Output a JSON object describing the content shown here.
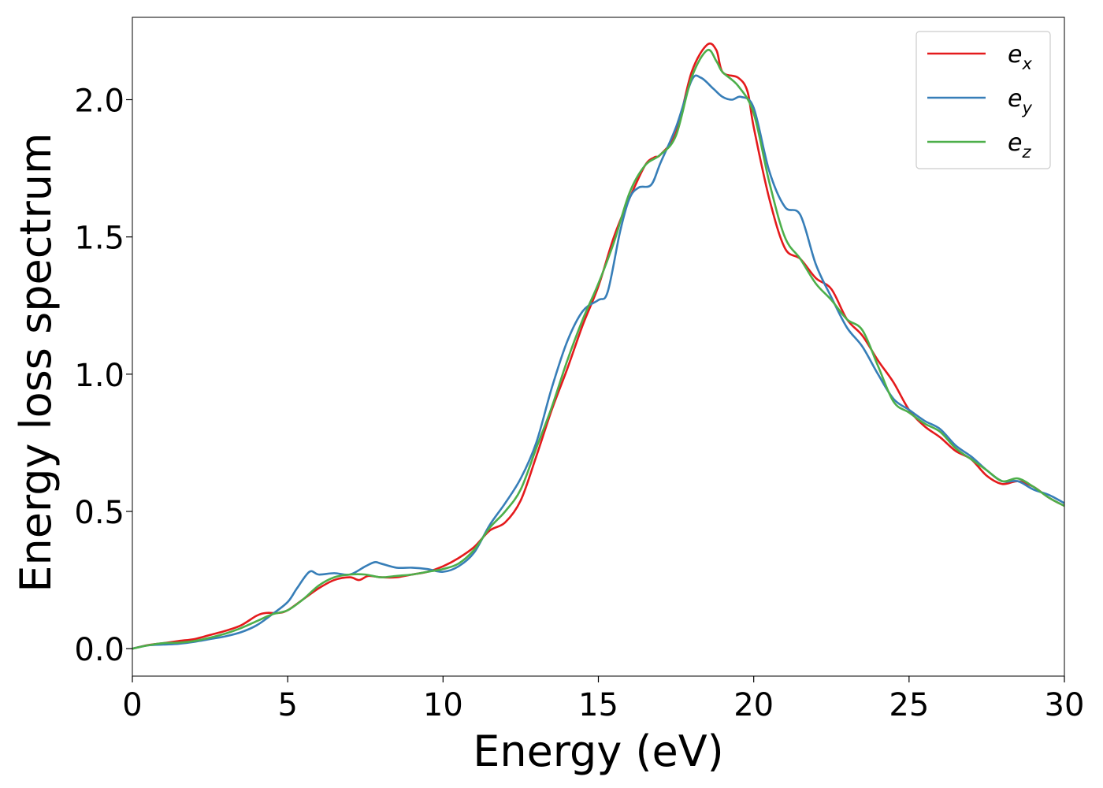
{
  "chart_data": {
    "type": "line",
    "title": "",
    "xlabel": "Energy (eV)",
    "ylabel": "Energy loss spectrum",
    "xlim": [
      0,
      30
    ],
    "ylim": [
      -0.1,
      2.3
    ],
    "xticks": [
      0,
      5,
      10,
      15,
      20,
      25,
      30
    ],
    "xtick_labels": [
      "0",
      "5",
      "10",
      "15",
      "20",
      "25",
      "30"
    ],
    "yticks": [
      0.0,
      0.5,
      1.0,
      1.5,
      2.0
    ],
    "ytick_labels": [
      "0.0",
      "0.5",
      "1.0",
      "1.5",
      "2.0"
    ],
    "grid": false,
    "legend_position": "top-right",
    "series": [
      {
        "name": "e_x",
        "label_main": "e",
        "label_sub": "x",
        "color": "#e41a1c",
        "points": [
          [
            0,
            0
          ],
          [
            0.5,
            0.013
          ],
          [
            1,
            0.02
          ],
          [
            1.5,
            0.028
          ],
          [
            2,
            0.035
          ],
          [
            2.5,
            0.05
          ],
          [
            3,
            0.065
          ],
          [
            3.5,
            0.085
          ],
          [
            4,
            0.12
          ],
          [
            4.3,
            0.13
          ],
          [
            4.7,
            0.13
          ],
          [
            5,
            0.14
          ],
          [
            5.5,
            0.18
          ],
          [
            6,
            0.22
          ],
          [
            6.5,
            0.25
          ],
          [
            7,
            0.26
          ],
          [
            7.3,
            0.25
          ],
          [
            7.6,
            0.265
          ],
          [
            8,
            0.26
          ],
          [
            8.5,
            0.26
          ],
          [
            9,
            0.27
          ],
          [
            9.5,
            0.28
          ],
          [
            10,
            0.3
          ],
          [
            10.5,
            0.33
          ],
          [
            11,
            0.37
          ],
          [
            11.5,
            0.43
          ],
          [
            12,
            0.46
          ],
          [
            12.5,
            0.54
          ],
          [
            13,
            0.7
          ],
          [
            13.5,
            0.87
          ],
          [
            14,
            1.02
          ],
          [
            14.5,
            1.18
          ],
          [
            15,
            1.32
          ],
          [
            15.5,
            1.5
          ],
          [
            16,
            1.64
          ],
          [
            16.5,
            1.76
          ],
          [
            16.8,
            1.79
          ],
          [
            17,
            1.8
          ],
          [
            17.5,
            1.88
          ],
          [
            18,
            2.1
          ],
          [
            18.5,
            2.2
          ],
          [
            18.8,
            2.18
          ],
          [
            19,
            2.1
          ],
          [
            19.5,
            2.08
          ],
          [
            19.8,
            2.03
          ],
          [
            20,
            1.9
          ],
          [
            20.5,
            1.64
          ],
          [
            21,
            1.46
          ],
          [
            21.5,
            1.42
          ],
          [
            22,
            1.35
          ],
          [
            22.5,
            1.31
          ],
          [
            23,
            1.2
          ],
          [
            23.5,
            1.14
          ],
          [
            24,
            1.05
          ],
          [
            24.5,
            0.97
          ],
          [
            25,
            0.87
          ],
          [
            25.5,
            0.81
          ],
          [
            26,
            0.77
          ],
          [
            26.5,
            0.72
          ],
          [
            27,
            0.69
          ],
          [
            27.5,
            0.63
          ],
          [
            28,
            0.6
          ],
          [
            28.5,
            0.61
          ],
          [
            29,
            0.59
          ],
          [
            29.5,
            0.55
          ],
          [
            30,
            0.52
          ]
        ]
      },
      {
        "name": "e_y",
        "label_main": "e",
        "label_sub": "y",
        "color": "#377eb8",
        "points": [
          [
            0,
            0
          ],
          [
            0.5,
            0.012
          ],
          [
            1,
            0.015
          ],
          [
            1.5,
            0.018
          ],
          [
            2,
            0.025
          ],
          [
            2.5,
            0.035
          ],
          [
            3,
            0.045
          ],
          [
            3.5,
            0.06
          ],
          [
            4,
            0.085
          ],
          [
            4.5,
            0.125
          ],
          [
            5,
            0.17
          ],
          [
            5.3,
            0.22
          ],
          [
            5.7,
            0.28
          ],
          [
            6,
            0.27
          ],
          [
            6.5,
            0.275
          ],
          [
            7,
            0.27
          ],
          [
            7.5,
            0.3
          ],
          [
            7.8,
            0.315
          ],
          [
            8,
            0.31
          ],
          [
            8.5,
            0.295
          ],
          [
            9,
            0.295
          ],
          [
            9.5,
            0.29
          ],
          [
            10,
            0.28
          ],
          [
            10.5,
            0.3
          ],
          [
            11,
            0.35
          ],
          [
            11.5,
            0.45
          ],
          [
            12,
            0.53
          ],
          [
            12.5,
            0.62
          ],
          [
            13,
            0.75
          ],
          [
            13.5,
            0.95
          ],
          [
            14,
            1.12
          ],
          [
            14.5,
            1.23
          ],
          [
            15,
            1.27
          ],
          [
            15.3,
            1.3
          ],
          [
            15.7,
            1.52
          ],
          [
            16,
            1.64
          ],
          [
            16.3,
            1.68
          ],
          [
            16.7,
            1.69
          ],
          [
            17,
            1.77
          ],
          [
            17.5,
            1.9
          ],
          [
            18,
            2.07
          ],
          [
            18.3,
            2.08
          ],
          [
            18.7,
            2.04
          ],
          [
            19,
            2.01
          ],
          [
            19.3,
            2.0
          ],
          [
            19.6,
            2.01
          ],
          [
            20,
            1.97
          ],
          [
            20.5,
            1.74
          ],
          [
            21,
            1.61
          ],
          [
            21.5,
            1.58
          ],
          [
            22,
            1.4
          ],
          [
            22.5,
            1.28
          ],
          [
            23,
            1.17
          ],
          [
            23.5,
            1.1
          ],
          [
            24,
            1.0
          ],
          [
            24.5,
            0.91
          ],
          [
            25,
            0.87
          ],
          [
            25.5,
            0.83
          ],
          [
            26,
            0.8
          ],
          [
            26.5,
            0.74
          ],
          [
            27,
            0.7
          ],
          [
            27.5,
            0.65
          ],
          [
            28,
            0.61
          ],
          [
            28.5,
            0.61
          ],
          [
            29,
            0.58
          ],
          [
            29.5,
            0.56
          ],
          [
            30,
            0.53
          ]
        ]
      },
      {
        "name": "e_z",
        "label_main": "e",
        "label_sub": "z",
        "color": "#4daf4a",
        "points": [
          [
            0,
            0
          ],
          [
            0.5,
            0.012
          ],
          [
            1,
            0.02
          ],
          [
            1.5,
            0.022
          ],
          [
            2,
            0.028
          ],
          [
            2.5,
            0.04
          ],
          [
            3,
            0.055
          ],
          [
            3.5,
            0.075
          ],
          [
            4,
            0.1
          ],
          [
            4.5,
            0.125
          ],
          [
            5,
            0.14
          ],
          [
            5.5,
            0.18
          ],
          [
            6,
            0.23
          ],
          [
            6.5,
            0.26
          ],
          [
            7,
            0.27
          ],
          [
            7.5,
            0.27
          ],
          [
            8,
            0.26
          ],
          [
            8.5,
            0.265
          ],
          [
            9,
            0.27
          ],
          [
            9.5,
            0.28
          ],
          [
            10,
            0.29
          ],
          [
            10.5,
            0.31
          ],
          [
            11,
            0.36
          ],
          [
            11.5,
            0.44
          ],
          [
            12,
            0.5
          ],
          [
            12.5,
            0.58
          ],
          [
            13,
            0.73
          ],
          [
            13.5,
            0.88
          ],
          [
            14,
            1.05
          ],
          [
            14.5,
            1.2
          ],
          [
            15,
            1.33
          ],
          [
            15.5,
            1.48
          ],
          [
            16,
            1.66
          ],
          [
            16.5,
            1.76
          ],
          [
            17,
            1.8
          ],
          [
            17.5,
            1.87
          ],
          [
            18,
            2.08
          ],
          [
            18.5,
            2.18
          ],
          [
            18.8,
            2.14
          ],
          [
            19,
            2.1
          ],
          [
            19.5,
            2.05
          ],
          [
            20,
            1.95
          ],
          [
            20.5,
            1.7
          ],
          [
            21,
            1.5
          ],
          [
            21.5,
            1.42
          ],
          [
            22,
            1.33
          ],
          [
            22.5,
            1.27
          ],
          [
            23,
            1.2
          ],
          [
            23.5,
            1.16
          ],
          [
            24,
            1.03
          ],
          [
            24.5,
            0.9
          ],
          [
            25,
            0.86
          ],
          [
            25.5,
            0.82
          ],
          [
            26,
            0.79
          ],
          [
            26.5,
            0.73
          ],
          [
            27,
            0.69
          ],
          [
            27.5,
            0.65
          ],
          [
            28,
            0.61
          ],
          [
            28.5,
            0.62
          ],
          [
            29,
            0.59
          ],
          [
            29.5,
            0.55
          ],
          [
            30,
            0.52
          ]
        ]
      }
    ]
  }
}
